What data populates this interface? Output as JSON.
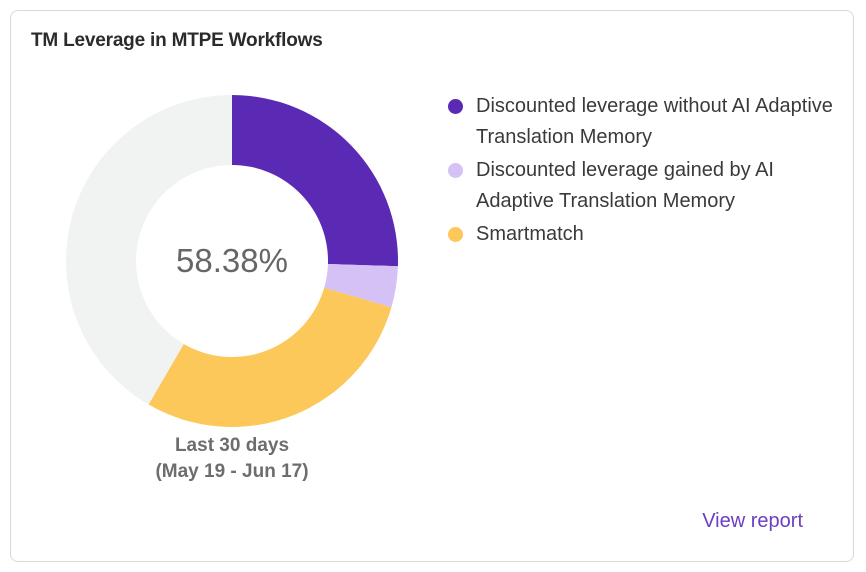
{
  "card": {
    "title": "TM Leverage in MTPE Workflows",
    "period_line1": "Last 30 days",
    "period_line2": "(May 19 - Jun 17)",
    "view_report_label": "View report"
  },
  "colors": {
    "remainder": "#f1f2f2",
    "card_border": "#d9d9d9",
    "link": "#6a3fc4"
  },
  "chart_data": {
    "type": "pie",
    "donut": true,
    "center_label": "58.38%",
    "total": 58.38,
    "series": [
      {
        "name": "Discounted leverage without AI Adaptive Translation Memory",
        "value": 25.5,
        "color": "#5b2ab5"
      },
      {
        "name": "Discounted leverage gained by AI Adaptive Translation Memory",
        "value": 4.0,
        "color": "#d5c1f5"
      },
      {
        "name": "Smartmatch",
        "value": 28.88,
        "color": "#fdc85a"
      }
    ],
    "remainder": {
      "value": 41.62,
      "color": "#f1f2f2"
    },
    "legend_position": "right"
  }
}
